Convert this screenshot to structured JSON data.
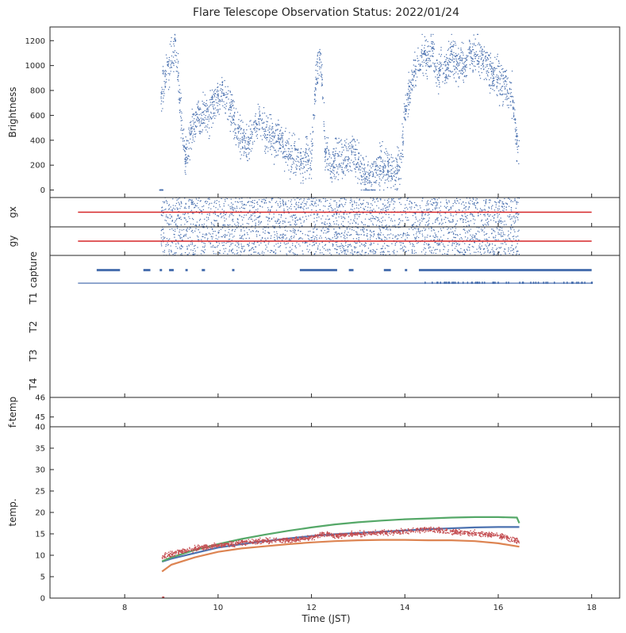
{
  "chart_data": {
    "title": "Flare Telescope Observation Status: 2022/01/24",
    "xlabel": "Time (JST)",
    "xlim": [
      6.4,
      18.6
    ],
    "x_ticks": [
      8,
      10,
      12,
      14,
      16,
      18
    ],
    "colors": {
      "blue": "#4c72b0",
      "orange": "#dd8452",
      "green": "#55a868",
      "red": "#c44e52"
    },
    "panels": [
      {
        "id": "brightness",
        "type": "scatter",
        "ylabel": "Brightness",
        "ylim": [
          -60,
          1310
        ],
        "y_ticks": [
          0,
          200,
          400,
          600,
          800,
          1000,
          1200
        ],
        "series": [
          {
            "color": "#4c72b0",
            "x": [
              8.75,
              8.85,
              8.95,
              9.05,
              9.1,
              9.2,
              9.3,
              9.4,
              9.5,
              9.6,
              9.7,
              9.8,
              9.9,
              10.0,
              10.1,
              10.2,
              10.3,
              10.4,
              10.5,
              10.6,
              10.7,
              10.8,
              10.9,
              11.0,
              11.1,
              11.2,
              11.3,
              11.4,
              11.5,
              11.6,
              11.7,
              11.8,
              11.9,
              12.0,
              12.1,
              12.2,
              12.3,
              12.4,
              12.5,
              12.6,
              12.7,
              12.8,
              12.9,
              13.0,
              13.1,
              13.2,
              13.3,
              13.4,
              13.5,
              13.6,
              13.7,
              13.8,
              13.9,
              14.0,
              14.1,
              14.2,
              14.3,
              14.4,
              14.5,
              14.6,
              14.7,
              14.8,
              14.9,
              15.0,
              15.1,
              15.2,
              15.3,
              15.4,
              15.5,
              15.6,
              15.7,
              15.8,
              15.9,
              16.0,
              16.1,
              16.2,
              16.3,
              16.4,
              16.45
            ],
            "y": [
              700,
              900,
              980,
              1100,
              1150,
              600,
              250,
              450,
              550,
              600,
              650,
              550,
              700,
              750,
              800,
              700,
              650,
              450,
              400,
              350,
              420,
              500,
              550,
              480,
              420,
              380,
              400,
              350,
              300,
              250,
              280,
              200,
              300,
              250,
              900,
              1050,
              300,
              200,
              250,
              280,
              220,
              250,
              300,
              200,
              150,
              80,
              100,
              150,
              180,
              200,
              150,
              160,
              180,
              600,
              800,
              950,
              1000,
              1100,
              1050,
              1150,
              900,
              1000,
              950,
              1100,
              1000,
              1050,
              1000,
              1080,
              1100,
              1060,
              1020,
              980,
              940,
              900,
              860,
              820,
              780,
              400,
              350
            ],
            "spread": 230
          }
        ]
      },
      {
        "id": "gx",
        "type": "scatter",
        "ylabel": "gx",
        "reference_line_color": "#d62728"
      },
      {
        "id": "gy",
        "type": "scatter",
        "ylabel": "gy",
        "reference_line_color": "#d62728"
      },
      {
        "id": "status",
        "type": "scatter",
        "y_labels": [
          "capture",
          "T1",
          "T2",
          "T3",
          "T4"
        ]
      },
      {
        "id": "ftemp",
        "type": "scatter",
        "ylabel": "f-temp",
        "ylim": [
          44.5,
          46
        ],
        "y_ticks": [
          45,
          46
        ]
      },
      {
        "id": "temp",
        "type": "line",
        "ylabel": "temp.",
        "ylim": [
          0,
          40
        ],
        "y_ticks": [
          0,
          5,
          10,
          15,
          20,
          25,
          30,
          35,
          40
        ],
        "series": [
          {
            "color": "#4c72b0",
            "x": [
              8.8,
              9.0,
              9.5,
              10.0,
              10.5,
              11.0,
              11.5,
              12.0,
              12.5,
              13.0,
              13.5,
              14.0,
              14.5,
              15.0,
              15.5,
              16.0,
              16.45
            ],
            "y": [
              8.5,
              9.2,
              10.5,
              11.8,
              12.6,
              13.3,
              13.9,
              14.5,
              14.9,
              15.2,
              15.5,
              15.8,
              16.1,
              16.3,
              16.5,
              16.6,
              16.6
            ]
          },
          {
            "color": "#dd8452",
            "x": [
              8.8,
              9.0,
              9.5,
              10.0,
              10.5,
              11.0,
              11.5,
              12.0,
              12.5,
              13.0,
              13.5,
              14.0,
              14.5,
              15.0,
              15.5,
              16.0,
              16.45
            ],
            "y": [
              6.2,
              7.8,
              9.5,
              10.8,
              11.6,
              12.1,
              12.6,
              13.0,
              13.3,
              13.5,
              13.6,
              13.6,
              13.5,
              13.5,
              13.3,
              12.8,
              12.0
            ]
          },
          {
            "color": "#55a868",
            "x": [
              8.8,
              9.0,
              9.5,
              10.0,
              10.5,
              11.0,
              11.5,
              12.0,
              12.5,
              13.0,
              13.5,
              14.0,
              14.5,
              15.0,
              15.5,
              16.0,
              16.4,
              16.45
            ],
            "y": [
              8.6,
              9.5,
              11.2,
              12.6,
              13.8,
              14.8,
              15.7,
              16.5,
              17.2,
              17.7,
              18.1,
              18.4,
              18.6,
              18.8,
              18.9,
              18.9,
              18.8,
              17.5
            ]
          },
          {
            "color": "#c44e52",
            "x": [
              8.8,
              9.0,
              9.5,
              10.0,
              10.5,
              11.0,
              11.5,
              12.0,
              12.3,
              12.5,
              13.0,
              13.5,
              14.0,
              14.5,
              15.0,
              15.5,
              16.0,
              16.45
            ],
            "y": [
              9.6,
              10.3,
              11.5,
              12.3,
              13.0,
              13.3,
              13.6,
              14.0,
              15.0,
              14.6,
              15.0,
              15.3,
              15.6,
              16.1,
              15.6,
              15.1,
              14.6,
              13.2
            ],
            "noisy": true
          }
        ]
      }
    ]
  }
}
